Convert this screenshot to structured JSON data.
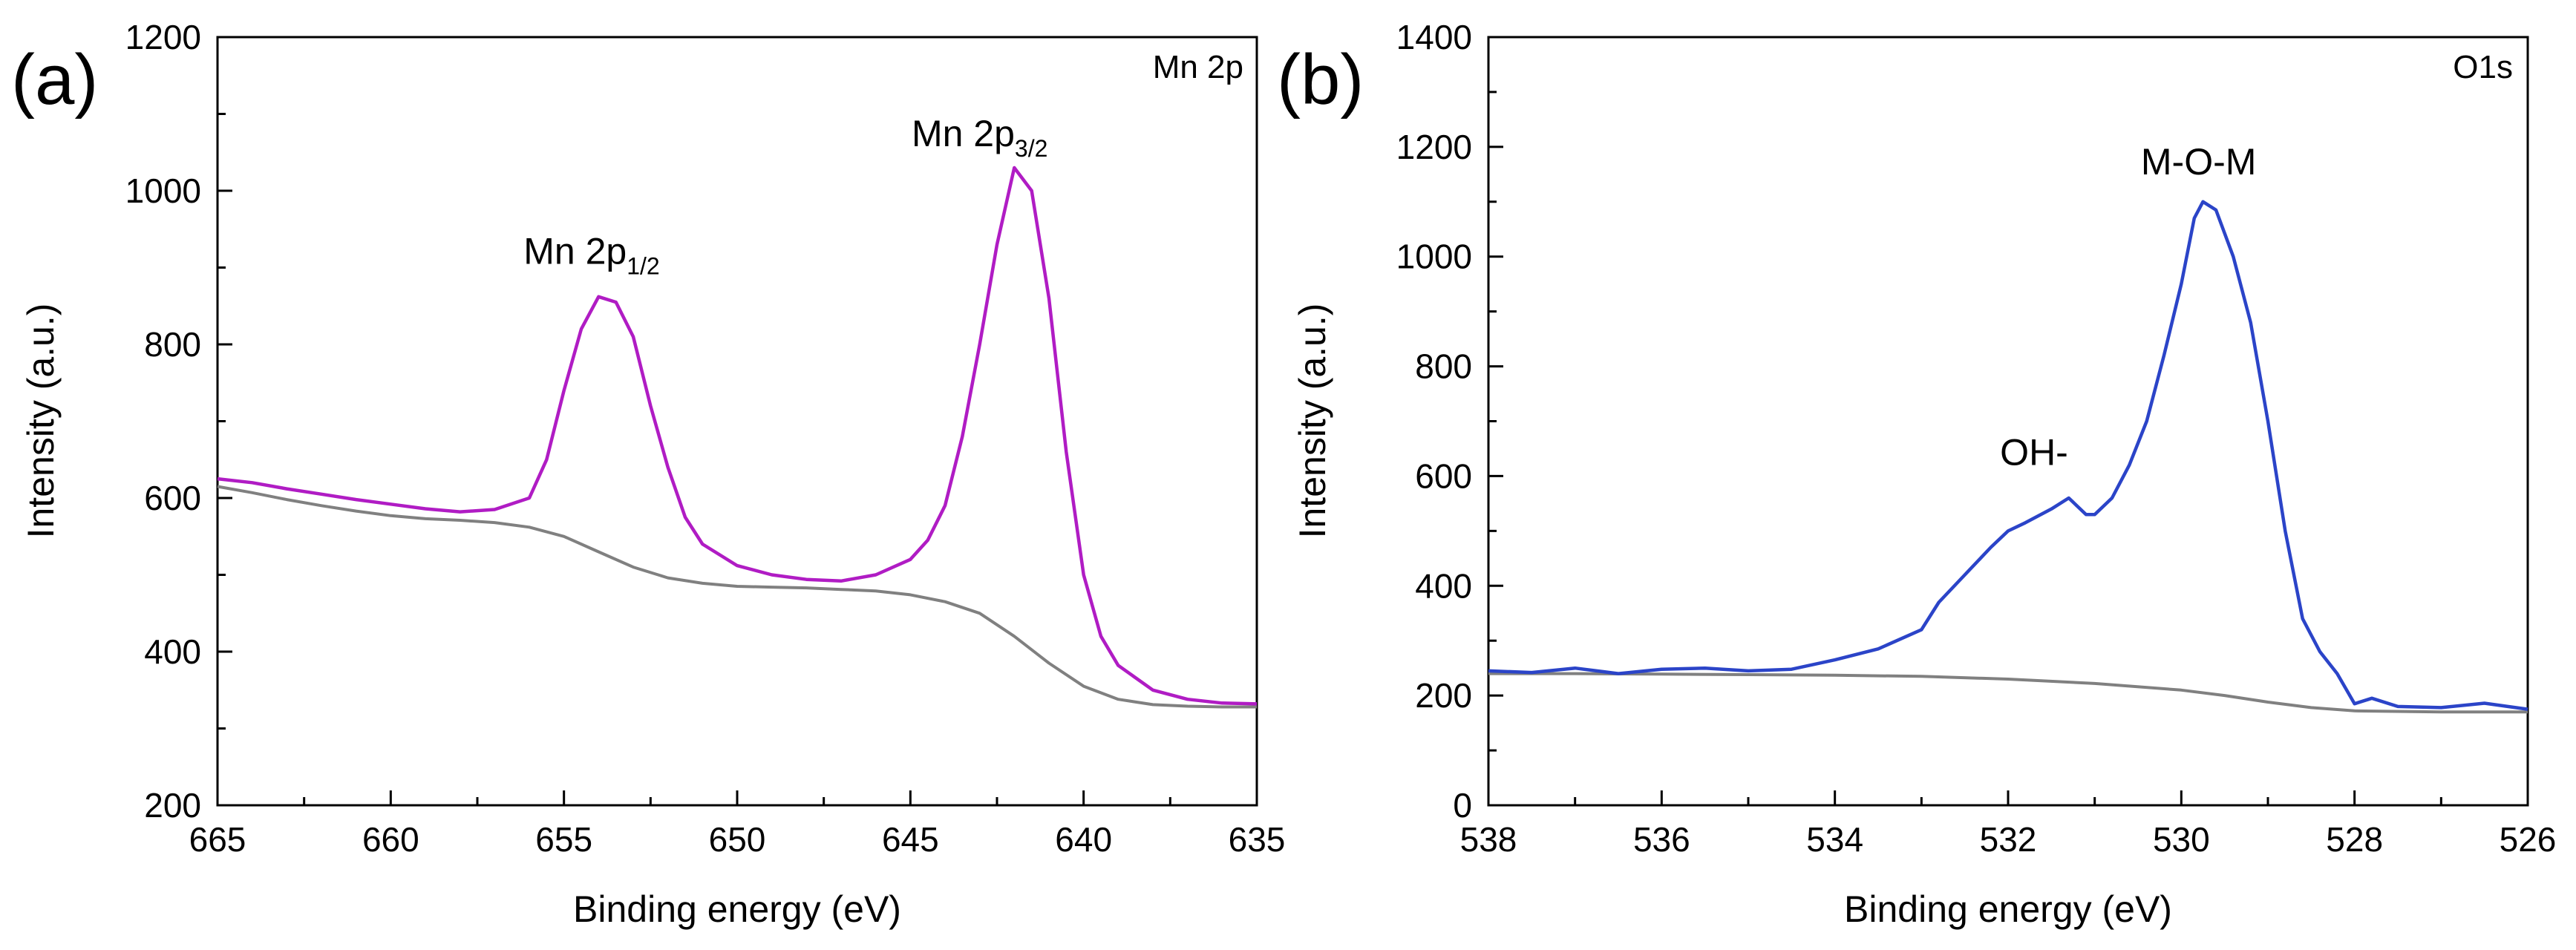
{
  "chart_data": [
    {
      "type": "line",
      "panel_label": "(a)",
      "corner_label": "Mn 2p",
      "xlabel": "Binding energy",
      "xunit": "(eV)",
      "ylabel": "Intensity (a.u.)",
      "xlim": [
        665,
        635
      ],
      "ylim": [
        200,
        1200
      ],
      "xticks": [
        "665",
        "660",
        "655",
        "650",
        "645",
        "640",
        "635"
      ],
      "yticks": [
        "200",
        "400",
        "600",
        "800",
        "1000",
        "1200"
      ],
      "series": [
        {
          "name": "Mn 2p spectrum",
          "color": "#b01cc4",
          "points": [
            [
              665,
              625
            ],
            [
              664,
              620
            ],
            [
              663,
              612
            ],
            [
              662,
              605
            ],
            [
              661,
              598
            ],
            [
              660,
              592
            ],
            [
              659,
              586
            ],
            [
              658,
              582
            ],
            [
              657,
              585
            ],
            [
              656,
              600
            ],
            [
              655.5,
              650
            ],
            [
              655,
              740
            ],
            [
              654.5,
              820
            ],
            [
              654,
              862
            ],
            [
              653.5,
              855
            ],
            [
              653,
              810
            ],
            [
              652.5,
              720
            ],
            [
              652,
              640
            ],
            [
              651.5,
              575
            ],
            [
              651,
              540
            ],
            [
              650,
              512
            ],
            [
              649,
              500
            ],
            [
              648,
              494
            ],
            [
              647,
              492
            ],
            [
              646,
              500
            ],
            [
              645,
              520
            ],
            [
              644.5,
              545
            ],
            [
              644,
              590
            ],
            [
              643.5,
              680
            ],
            [
              643,
              800
            ],
            [
              642.5,
              930
            ],
            [
              642,
              1030
            ],
            [
              641.5,
              1000
            ],
            [
              641,
              860
            ],
            [
              640.5,
              660
            ],
            [
              640,
              500
            ],
            [
              639.5,
              420
            ],
            [
              639,
              382
            ],
            [
              638,
              350
            ],
            [
              637,
              338
            ],
            [
              636,
              333
            ],
            [
              635,
              332
            ]
          ]
        },
        {
          "name": "Background",
          "color": "#808080",
          "points": [
            [
              665,
              615
            ],
            [
              664,
              607
            ],
            [
              663,
              598
            ],
            [
              662,
              590
            ],
            [
              661,
              583
            ],
            [
              660,
              577
            ],
            [
              659,
              573
            ],
            [
              658,
              571
            ],
            [
              657,
              568
            ],
            [
              656,
              562
            ],
            [
              655,
              550
            ],
            [
              654,
              530
            ],
            [
              653,
              510
            ],
            [
              652,
              496
            ],
            [
              651,
              489
            ],
            [
              650,
              485
            ],
            [
              649,
              484
            ],
            [
              648,
              483
            ],
            [
              647,
              481
            ],
            [
              646,
              479
            ],
            [
              645,
              474
            ],
            [
              644,
              465
            ],
            [
              643,
              450
            ],
            [
              642,
              420
            ],
            [
              641,
              385
            ],
            [
              640,
              355
            ],
            [
              639,
              338
            ],
            [
              638,
              331
            ],
            [
              637,
              329
            ],
            [
              636,
              328
            ],
            [
              635,
              328
            ]
          ]
        }
      ],
      "annotations": [
        {
          "text": "Mn 2p",
          "sub": "1/2",
          "x": 654.2,
          "y": 905
        },
        {
          "text": "Mn 2p",
          "sub": "3/2",
          "x": 643.0,
          "y": 1058
        }
      ]
    },
    {
      "type": "line",
      "panel_label": "(b)",
      "corner_label": "O1s",
      "xlabel": "Binding energy",
      "xunit": "(eV)",
      "ylabel": "Intensity (a.u.)",
      "xlim": [
        538,
        526
      ],
      "ylim": [
        0,
        1400
      ],
      "xticks": [
        "538",
        "536",
        "534",
        "532",
        "530",
        "528",
        "526"
      ],
      "yticks": [
        "0",
        "200",
        "400",
        "600",
        "800",
        "1000",
        "1200",
        "1400"
      ],
      "series": [
        {
          "name": "O1s spectrum",
          "color": "#2b44c8",
          "points": [
            [
              538,
              245
            ],
            [
              537.5,
              242
            ],
            [
              537,
              250
            ],
            [
              536.5,
              240
            ],
            [
              536,
              248
            ],
            [
              535.5,
              250
            ],
            [
              535,
              245
            ],
            [
              534.5,
              248
            ],
            [
              534,
              265
            ],
            [
              533.5,
              285
            ],
            [
              533,
              320
            ],
            [
              532.8,
              370
            ],
            [
              532.5,
              420
            ],
            [
              532.2,
              470
            ],
            [
              532,
              500
            ],
            [
              531.8,
              515
            ],
            [
              531.5,
              540
            ],
            [
              531.3,
              560
            ],
            [
              531.1,
              530
            ],
            [
              531,
              530
            ],
            [
              530.8,
              560
            ],
            [
              530.6,
              620
            ],
            [
              530.4,
              700
            ],
            [
              530.2,
              820
            ],
            [
              530,
              950
            ],
            [
              529.85,
              1070
            ],
            [
              529.75,
              1100
            ],
            [
              529.6,
              1085
            ],
            [
              529.4,
              1000
            ],
            [
              529.2,
              880
            ],
            [
              529,
              700
            ],
            [
              528.8,
              500
            ],
            [
              528.6,
              340
            ],
            [
              528.4,
              280
            ],
            [
              528.2,
              240
            ],
            [
              528,
              185
            ],
            [
              527.8,
              195
            ],
            [
              527.5,
              180
            ],
            [
              527,
              178
            ],
            [
              526.5,
              186
            ],
            [
              526,
              175
            ]
          ]
        },
        {
          "name": "Background",
          "color": "#808080",
          "points": [
            [
              538,
              240
            ],
            [
              537,
              240
            ],
            [
              536,
              239
            ],
            [
              535,
              238
            ],
            [
              534,
              237
            ],
            [
              533,
              235
            ],
            [
              532,
              230
            ],
            [
              531,
              222
            ],
            [
              530,
              210
            ],
            [
              529.5,
              200
            ],
            [
              529,
              188
            ],
            [
              528.5,
              178
            ],
            [
              528,
              172
            ],
            [
              527,
              170
            ],
            [
              526,
              170
            ]
          ]
        }
      ],
      "annotations": [
        {
          "text": "OH-",
          "x": 531.7,
          "y": 620
        },
        {
          "text": "M-O-M",
          "x": 529.8,
          "y": 1150
        }
      ]
    }
  ]
}
